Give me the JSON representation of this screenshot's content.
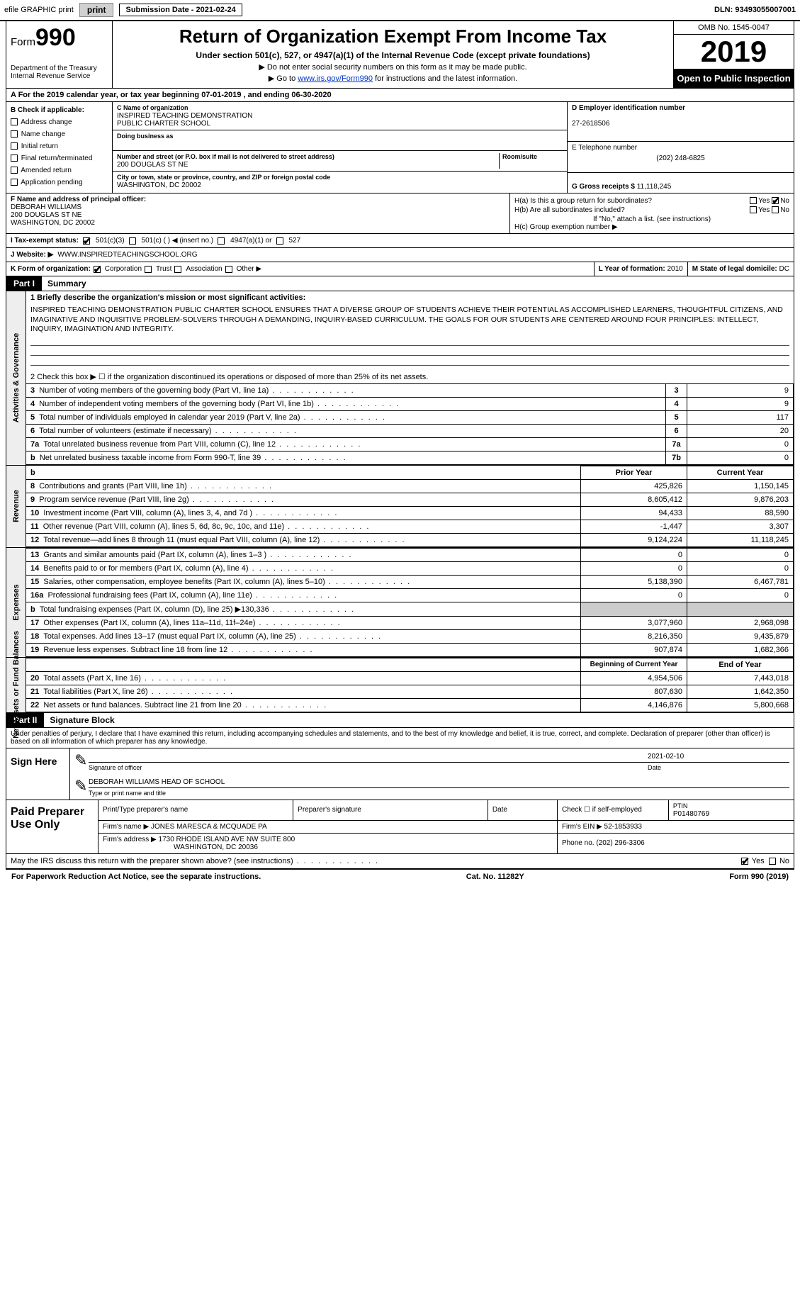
{
  "topbar": {
    "efile": "efile GRAPHIC print",
    "subdate_label": "Submission Date - ",
    "subdate": "2021-02-24",
    "dln_label": "DLN: ",
    "dln": "93493055007001"
  },
  "header": {
    "form_label": "Form",
    "form_no": "990",
    "dept1": "Department of the Treasury",
    "dept2": "Internal Revenue Service",
    "title": "Return of Organization Exempt From Income Tax",
    "subtitle": "Under section 501(c), 527, or 4947(a)(1) of the Internal Revenue Code (except private foundations)",
    "note1": "Do not enter social security numbers on this form as it may be made public.",
    "note2_pre": "Go to ",
    "note2_link": "www.irs.gov/Form990",
    "note2_post": " for instructions and the latest information.",
    "omb": "OMB No. 1545-0047",
    "year": "2019",
    "otp": "Open to Public Inspection"
  },
  "rowA": {
    "text": "A For the 2019 calendar year, or tax year beginning 07-01-2019   , and ending 06-30-2020"
  },
  "colB": {
    "label": "B Check if applicable:",
    "o1": "Address change",
    "o2": "Name change",
    "o3": "Initial return",
    "o4": "Final return/terminated",
    "o5": "Amended return",
    "o6": "Application pending"
  },
  "colC": {
    "c_lbl": "C Name of organization",
    "org1": "INSPIRED TEACHING DEMONSTRATION",
    "org2": "PUBLIC CHARTER SCHOOL",
    "dba_lbl": "Doing business as",
    "addr_lbl": "Number and street (or P.O. box if mail is not delivered to street address)",
    "room_lbl": "Room/suite",
    "addr": "200 DOUGLAS ST NE",
    "city_lbl": "City or town, state or province, country, and ZIP or foreign postal code",
    "city": "WASHINGTON, DC  20002"
  },
  "colD": {
    "d_lbl": "D Employer identification number",
    "ein": "27-2618506",
    "e_lbl": "E Telephone number",
    "phone": "(202) 248-6825",
    "g_lbl": "G Gross receipts $ ",
    "gross": "11,118,245"
  },
  "rowF": {
    "f_lbl": "F Name and address of principal officer:",
    "name": "DEBORAH WILLIAMS",
    "addr": "200 DOUGLAS ST NE",
    "city": "WASHINGTON, DC  20002"
  },
  "rowH": {
    "ha": "H(a)  Is this a group return for subordinates?",
    "hb": "H(b)  Are all subordinates included?",
    "hnote": "If \"No,\" attach a list. (see instructions)",
    "hc": "H(c)  Group exemption number ▶",
    "yes": "Yes",
    "no": "No"
  },
  "rowI": {
    "lbl": "I   Tax-exempt status:",
    "o1": "501(c)(3)",
    "o2": "501(c) (    ) ◀ (insert no.)",
    "o3": "4947(a)(1) or",
    "o4": "527"
  },
  "rowJ": {
    "lbl": "J   Website: ▶",
    "val": "WWW.INSPIREDTEACHINGSCHOOL.ORG"
  },
  "rowK": {
    "lbl": "K Form of organization:",
    "o1": "Corporation",
    "o2": "Trust",
    "o3": "Association",
    "o4": "Other ▶",
    "l_lbl": "L Year of formation: ",
    "l_val": "2010",
    "m_lbl": "M State of legal domicile: ",
    "m_val": "DC"
  },
  "part1": {
    "hdr": "Part I",
    "title": "Summary",
    "tab_ag": "Activities & Governance",
    "tab_rev": "Revenue",
    "tab_exp": "Expenses",
    "tab_na": "Net Assets or Fund Balances",
    "l1_lbl": "1  Briefly describe the organization's mission or most significant activities:",
    "l1_text": "INSPIRED TEACHING DEMONSTRATION PUBLIC CHARTER SCHOOL ENSURES THAT A DIVERSE GROUP OF STUDENTS ACHIEVE THEIR POTENTIAL AS ACCOMPLISHED LEARNERS, THOUGHTFUL CITIZENS, AND IMAGINATIVE AND INQUISITIVE PROBLEM-SOLVERS THROUGH A DEMANDING, INQUIRY-BASED CURRICULUM. THE GOALS FOR OUR STUDENTS ARE CENTERED AROUND FOUR PRINCIPLES: INTELLECT, INQUIRY, IMAGINATION AND INTEGRITY.",
    "l2": "2    Check this box ▶ ☐ if the organization discontinued its operations or disposed of more than 25% of its net assets.",
    "lines_ag": [
      {
        "n": "3",
        "d": "Number of voting members of the governing body (Part VI, line 1a)",
        "ln": "3",
        "v": "9"
      },
      {
        "n": "4",
        "d": "Number of independent voting members of the governing body (Part VI, line 1b)",
        "ln": "4",
        "v": "9"
      },
      {
        "n": "5",
        "d": "Total number of individuals employed in calendar year 2019 (Part V, line 2a)",
        "ln": "5",
        "v": "117"
      },
      {
        "n": "6",
        "d": "Total number of volunteers (estimate if necessary)",
        "ln": "6",
        "v": "20"
      },
      {
        "n": "7a",
        "d": "Total unrelated business revenue from Part VIII, column (C), line 12",
        "ln": "7a",
        "v": "0"
      },
      {
        "n": "b",
        "d": "Net unrelated business taxable income from Form 990-T, line 39",
        "ln": "7b",
        "v": "0"
      }
    ],
    "hdr_prior": "Prior Year",
    "hdr_curr": "Current Year",
    "lines_rev": [
      {
        "n": "8",
        "d": "Contributions and grants (Part VIII, line 1h)",
        "p": "425,826",
        "c": "1,150,145"
      },
      {
        "n": "9",
        "d": "Program service revenue (Part VIII, line 2g)",
        "p": "8,605,412",
        "c": "9,876,203"
      },
      {
        "n": "10",
        "d": "Investment income (Part VIII, column (A), lines 3, 4, and 7d )",
        "p": "94,433",
        "c": "88,590"
      },
      {
        "n": "11",
        "d": "Other revenue (Part VIII, column (A), lines 5, 6d, 8c, 9c, 10c, and 11e)",
        "p": "-1,447",
        "c": "3,307"
      },
      {
        "n": "12",
        "d": "Total revenue—add lines 8 through 11 (must equal Part VIII, column (A), line 12)",
        "p": "9,124,224",
        "c": "11,118,245"
      }
    ],
    "lines_exp": [
      {
        "n": "13",
        "d": "Grants and similar amounts paid (Part IX, column (A), lines 1–3 )",
        "p": "0",
        "c": "0"
      },
      {
        "n": "14",
        "d": "Benefits paid to or for members (Part IX, column (A), line 4)",
        "p": "0",
        "c": "0"
      },
      {
        "n": "15",
        "d": "Salaries, other compensation, employee benefits (Part IX, column (A), lines 5–10)",
        "p": "5,138,390",
        "c": "6,467,781"
      },
      {
        "n": "16a",
        "d": "Professional fundraising fees (Part IX, column (A), line 11e)",
        "p": "0",
        "c": "0"
      },
      {
        "n": "b",
        "d": "Total fundraising expenses (Part IX, column (D), line 25) ▶130,336",
        "p": "",
        "c": ""
      },
      {
        "n": "17",
        "d": "Other expenses (Part IX, column (A), lines 11a–11d, 11f–24e)",
        "p": "3,077,960",
        "c": "2,968,098"
      },
      {
        "n": "18",
        "d": "Total expenses. Add lines 13–17 (must equal Part IX, column (A), line 25)",
        "p": "8,216,350",
        "c": "9,435,879"
      },
      {
        "n": "19",
        "d": "Revenue less expenses. Subtract line 18 from line 12",
        "p": "907,874",
        "c": "1,682,366"
      }
    ],
    "hdr_boy": "Beginning of Current Year",
    "hdr_eoy": "End of Year",
    "lines_na": [
      {
        "n": "20",
        "d": "Total assets (Part X, line 16)",
        "p": "4,954,506",
        "c": "7,443,018"
      },
      {
        "n": "21",
        "d": "Total liabilities (Part X, line 26)",
        "p": "807,630",
        "c": "1,642,350"
      },
      {
        "n": "22",
        "d": "Net assets or fund balances. Subtract line 21 from line 20",
        "p": "4,146,876",
        "c": "5,800,668"
      }
    ]
  },
  "part2": {
    "hdr": "Part II",
    "title": "Signature Block",
    "decl": "Under penalties of perjury, I declare that I have examined this return, including accompanying schedules and statements, and to the best of my knowledge and belief, it is true, correct, and complete. Declaration of preparer (other than officer) is based on all information of which preparer has any knowledge.",
    "sign_here": "Sign Here",
    "sig_lbl": "Signature of officer",
    "sig_date": "2021-02-10",
    "date_lbl": "Date",
    "name": "DEBORAH WILLIAMS  HEAD OF SCHOOL",
    "name_lbl": "Type or print name and title"
  },
  "prep": {
    "lbl": "Paid Preparer Use Only",
    "c1": "Print/Type preparer's name",
    "c2": "Preparer's signature",
    "c3": "Date",
    "c4_pre": "Check ☐ if self-employed",
    "c5_lbl": "PTIN",
    "c5": "P01480769",
    "firm_lbl": "Firm's name     ▶ ",
    "firm": "JONES MARESCA & MCQUADE PA",
    "ein_lbl": "Firm's EIN ▶ ",
    "ein": "52-1853933",
    "addr_lbl": "Firm's address ▶ ",
    "addr1": "1730 RHODE ISLAND AVE NW SUITE 800",
    "addr2": "WASHINGTON, DC  20036",
    "ph_lbl": "Phone no. ",
    "ph": "(202) 296-3306"
  },
  "bottom": {
    "q": "May the IRS discuss this return with the preparer shown above? (see instructions)",
    "yes": "Yes",
    "no": "No"
  },
  "footer": {
    "l": "For Paperwork Reduction Act Notice, see the separate instructions.",
    "m": "Cat. No. 11282Y",
    "r": "Form 990 (2019)"
  }
}
